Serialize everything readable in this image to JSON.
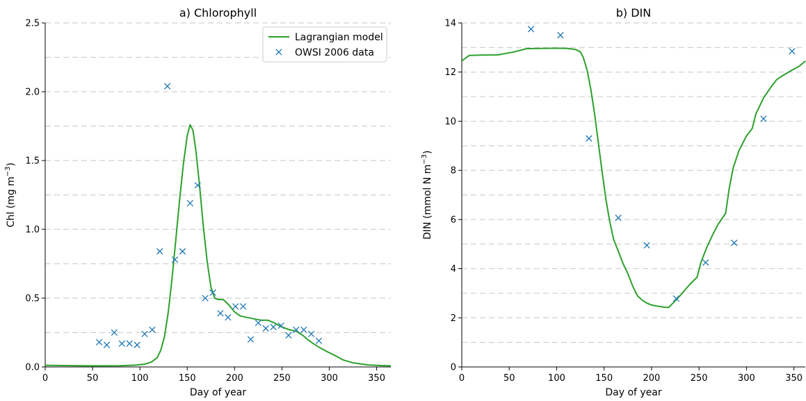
{
  "chart_data": [
    {
      "type": "line",
      "title": "a) Chlorophyll",
      "xlabel": "Day of year",
      "ylabel_main": "Chl (mg m",
      "ylabel_sup": "−3",
      "ylabel_close": ")",
      "xlim": [
        0,
        365
      ],
      "ylim": [
        0,
        2.5
      ],
      "xticks": [
        0,
        50,
        100,
        150,
        200,
        250,
        300,
        350
      ],
      "yticks": [
        0.0,
        0.5,
        1.0,
        1.5,
        2.0,
        2.5
      ],
      "ytick_labels": [
        "0.0",
        "0.5",
        "1.0",
        "1.5",
        "2.0",
        "2.5"
      ],
      "grid": "horizontal dashed",
      "legend_position": "top-right",
      "colors": {
        "model": "#2ca02c",
        "data": "#1f77b4",
        "grid": "#d0d0d0"
      },
      "legend": [
        {
          "label": "Lagrangian model",
          "kind": "line"
        },
        {
          "label": "OWSI 2006 data",
          "kind": "marker"
        }
      ],
      "series": [
        {
          "name": "Lagrangian model",
          "kind": "line",
          "points": [
            [
              0,
              0.012
            ],
            [
              20,
              0.01
            ],
            [
              50,
              0.008
            ],
            [
              80,
              0.009
            ],
            [
              95,
              0.013
            ],
            [
              105,
              0.02
            ],
            [
              112,
              0.035
            ],
            [
              118,
              0.065
            ],
            [
              122,
              0.12
            ],
            [
              126,
              0.22
            ],
            [
              130,
              0.4
            ],
            [
              134,
              0.65
            ],
            [
              138,
              0.93
            ],
            [
              142,
              1.22
            ],
            [
              146,
              1.48
            ],
            [
              150,
              1.68
            ],
            [
              153,
              1.76
            ],
            [
              156,
              1.72
            ],
            [
              159,
              1.58
            ],
            [
              163,
              1.32
            ],
            [
              167,
              1.02
            ],
            [
              171,
              0.77
            ],
            [
              175,
              0.58
            ],
            [
              179,
              0.5
            ],
            [
              183,
              0.49
            ],
            [
              188,
              0.49
            ],
            [
              194,
              0.45
            ],
            [
              200,
              0.4
            ],
            [
              206,
              0.37
            ],
            [
              213,
              0.36
            ],
            [
              220,
              0.35
            ],
            [
              228,
              0.34
            ],
            [
              235,
              0.34
            ],
            [
              242,
              0.32
            ],
            [
              250,
              0.29
            ],
            [
              258,
              0.27
            ],
            [
              265,
              0.26
            ],
            [
              272,
              0.23
            ],
            [
              277,
              0.2
            ],
            [
              283,
              0.17
            ],
            [
              290,
              0.14
            ],
            [
              298,
              0.11
            ],
            [
              307,
              0.08
            ],
            [
              315,
              0.05
            ],
            [
              325,
              0.03
            ],
            [
              340,
              0.015
            ],
            [
              355,
              0.01
            ],
            [
              365,
              0.008
            ]
          ]
        },
        {
          "name": "OWSI 2006 data",
          "kind": "marker",
          "points": [
            [
              57,
              0.18
            ],
            [
              65,
              0.16
            ],
            [
              73,
              0.25
            ],
            [
              81,
              0.17
            ],
            [
              89,
              0.17
            ],
            [
              97,
              0.16
            ],
            [
              105,
              0.24
            ],
            [
              113,
              0.27
            ],
            [
              121,
              0.84
            ],
            [
              129,
              2.04
            ],
            [
              137,
              0.78
            ],
            [
              145,
              0.84
            ],
            [
              153,
              1.19
            ],
            [
              161,
              1.32
            ],
            [
              169,
              0.5
            ],
            [
              177,
              0.54
            ],
            [
              185,
              0.39
            ],
            [
              193,
              0.36
            ],
            [
              201,
              0.44
            ],
            [
              209,
              0.44
            ],
            [
              217,
              0.2
            ],
            [
              225,
              0.32
            ],
            [
              233,
              0.28
            ],
            [
              241,
              0.29
            ],
            [
              249,
              0.3
            ],
            [
              257,
              0.23
            ],
            [
              265,
              0.27
            ],
            [
              273,
              0.27
            ],
            [
              281,
              0.24
            ],
            [
              289,
              0.19
            ]
          ]
        }
      ]
    },
    {
      "type": "line",
      "title": "b) DIN",
      "xlabel": "Day of year",
      "ylabel_main": "DIN (mmol N m",
      "ylabel_sup": "−3",
      "ylabel_close": ")",
      "xlim": [
        0,
        362
      ],
      "ylim": [
        0,
        14
      ],
      "xticks": [
        0,
        50,
        100,
        150,
        200,
        250,
        300,
        350
      ],
      "yticks": [
        0,
        2,
        4,
        6,
        8,
        10,
        12,
        14
      ],
      "ytick_labels": [
        "0",
        "2",
        "4",
        "6",
        "8",
        "10",
        "12",
        "14"
      ],
      "grid": "horizontal dashed",
      "colors": {
        "model": "#2ca02c",
        "data": "#1f77b4",
        "grid": "#d0d0d0"
      },
      "series": [
        {
          "name": "",
          "kind": "line",
          "points": [
            [
              0,
              12.45
            ],
            [
              5,
              12.6
            ],
            [
              8,
              12.68
            ],
            [
              20,
              12.69
            ],
            [
              38,
              12.7
            ],
            [
              55,
              12.82
            ],
            [
              68,
              12.95
            ],
            [
              80,
              12.96
            ],
            [
              100,
              12.97
            ],
            [
              112,
              12.96
            ],
            [
              120,
              12.92
            ],
            [
              125,
              12.82
            ],
            [
              128,
              12.6
            ],
            [
              132,
              12.1
            ],
            [
              136,
              11.3
            ],
            [
              140,
              10.3
            ],
            [
              144,
              9.1
            ],
            [
              148,
              7.9
            ],
            [
              152,
              6.8
            ],
            [
              156,
              5.9
            ],
            [
              160,
              5.2
            ],
            [
              165,
              4.7
            ],
            [
              170,
              4.2
            ],
            [
              175,
              3.8
            ],
            [
              180,
              3.3
            ],
            [
              185,
              2.9
            ],
            [
              190,
              2.72
            ],
            [
              195,
              2.6
            ],
            [
              200,
              2.52
            ],
            [
              207,
              2.47
            ],
            [
              214,
              2.43
            ],
            [
              218,
              2.42
            ],
            [
              222,
              2.58
            ],
            [
              230,
              2.9
            ],
            [
              240,
              3.35
            ],
            [
              248,
              3.65
            ],
            [
              252,
              4.25
            ],
            [
              258,
              4.85
            ],
            [
              264,
              5.35
            ],
            [
              270,
              5.8
            ],
            [
              278,
              6.25
            ],
            [
              282,
              7.3
            ],
            [
              286,
              8.1
            ],
            [
              292,
              8.8
            ],
            [
              300,
              9.4
            ],
            [
              306,
              9.7
            ],
            [
              310,
              10.3
            ],
            [
              318,
              10.95
            ],
            [
              326,
              11.4
            ],
            [
              332,
              11.7
            ],
            [
              338,
              11.85
            ],
            [
              348,
              12.08
            ],
            [
              356,
              12.25
            ],
            [
              362,
              12.45
            ]
          ]
        },
        {
          "name": "",
          "kind": "marker",
          "points": [
            [
              73,
              13.75
            ],
            [
              104,
              13.5
            ],
            [
              134,
              9.3
            ],
            [
              165,
              6.07
            ],
            [
              195,
              4.95
            ],
            [
              226,
              2.78
            ],
            [
              257,
              4.25
            ],
            [
              287,
              5.05
            ],
            [
              318,
              10.1
            ],
            [
              348,
              12.85
            ]
          ]
        }
      ]
    }
  ]
}
